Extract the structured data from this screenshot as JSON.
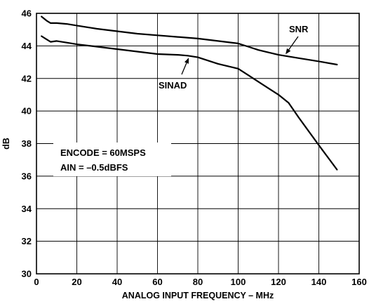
{
  "chart_data": {
    "type": "line",
    "title": "",
    "xlabel": "ANALOG INPUT FREQUENCY – MHz",
    "ylabel": "dB",
    "xlim": [
      0,
      160
    ],
    "ylim": [
      30,
      46
    ],
    "xticks": [
      0,
      20,
      40,
      60,
      80,
      100,
      120,
      140,
      160
    ],
    "yticks": [
      30,
      32,
      34,
      36,
      38,
      40,
      42,
      44,
      46
    ],
    "grid": true,
    "series": [
      {
        "name": "SNR",
        "x": [
          2.5,
          5,
          7,
          10,
          15,
          20,
          30,
          40,
          50,
          60,
          70,
          80,
          90,
          100,
          105,
          110,
          120,
          130,
          140,
          149
        ],
        "y": [
          45.8,
          45.55,
          45.4,
          45.4,
          45.35,
          45.25,
          45.05,
          44.9,
          44.75,
          44.65,
          44.55,
          44.45,
          44.3,
          44.15,
          43.95,
          43.75,
          43.45,
          43.25,
          43.05,
          42.85
        ]
      },
      {
        "name": "SINAD",
        "x": [
          2.5,
          5,
          7,
          10,
          15,
          20,
          30,
          40,
          50,
          60,
          70,
          75,
          80,
          90,
          100,
          105,
          110,
          115,
          120,
          125,
          130,
          140,
          149
        ],
        "y": [
          44.6,
          44.4,
          44.25,
          44.3,
          44.2,
          44.1,
          43.95,
          43.8,
          43.65,
          43.5,
          43.45,
          43.4,
          43.3,
          42.9,
          42.6,
          42.2,
          41.8,
          41.4,
          41.0,
          40.5,
          39.6,
          37.9,
          36.4
        ]
      }
    ],
    "annotations": [
      {
        "text": "SNR",
        "target_series": "SNR"
      },
      {
        "text": "SINAD",
        "target_series": "SINAD"
      }
    ],
    "notes": [
      "ENCODE = 60MSPS",
      "AIN = –0.5dBFS"
    ]
  }
}
